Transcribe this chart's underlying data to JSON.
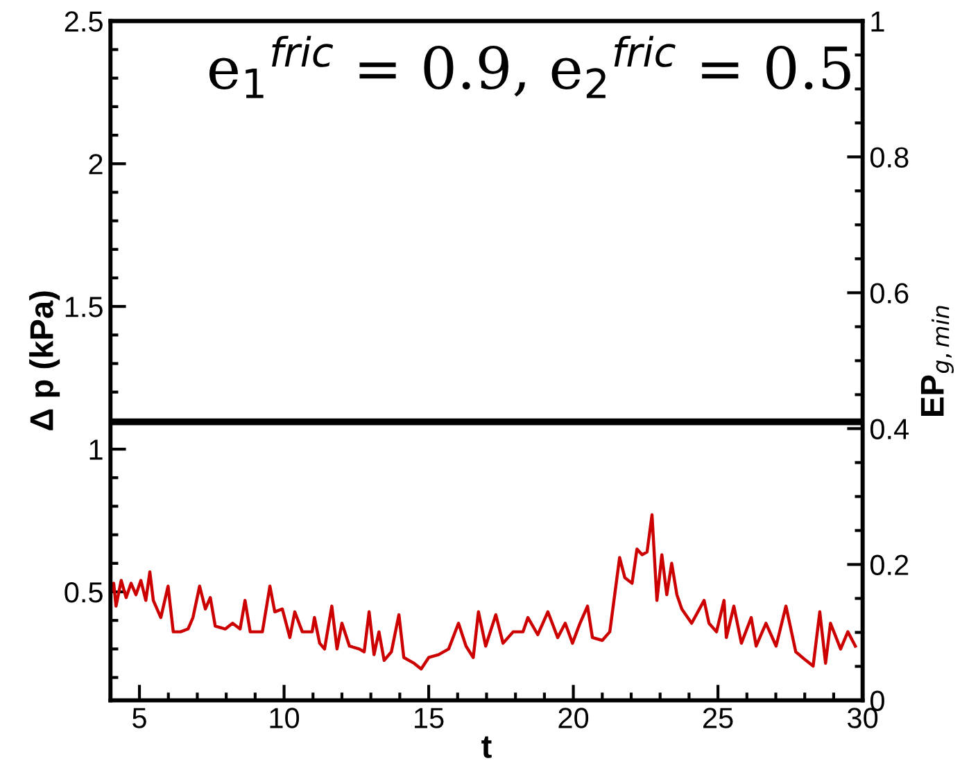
{
  "chart_data": {
    "type": "line",
    "xlabel": "t",
    "ylabel": "Δ p (kPa)",
    "y2label": "EP$_{g,min}$",
    "annotations": [
      "e$_{1}$$^{fric}$ = 0.9, e$_{2}$$^{fric}$ = 0.5"
    ],
    "xlim": [
      4,
      30
    ],
    "xticks": [
      5,
      10,
      15,
      20,
      25,
      30
    ],
    "ylim": [
      0.12,
      2.5
    ],
    "yticks": [
      0.5,
      1,
      1.5,
      2,
      2.5
    ],
    "y2lim": [
      0,
      1
    ],
    "y2ticks": [
      0,
      0.2,
      0.4,
      0.6,
      0.8,
      1
    ],
    "grid": false,
    "legend": false,
    "marker": "none",
    "line_style": "solid",
    "series": [
      {
        "color": "#cc0000",
        "x": [
          4.02,
          4.11,
          4.19,
          4.37,
          4.54,
          4.71,
          4.88,
          5.05,
          5.22,
          5.36,
          5.48,
          5.74,
          5.99,
          6.17,
          6.42,
          6.68,
          6.85,
          7.08,
          7.28,
          7.45,
          7.62,
          7.97,
          8.22,
          8.48,
          8.65,
          8.83,
          9.25,
          9.51,
          9.68,
          9.94,
          10.2,
          10.37,
          10.63,
          10.97,
          11.05,
          11.23,
          11.4,
          11.65,
          11.83,
          12.0,
          12.26,
          12.6,
          12.77,
          12.94,
          13.11,
          13.28,
          13.46,
          13.71,
          13.97,
          14.14,
          14.49,
          14.74,
          15.0,
          15.34,
          15.69,
          16.03,
          16.29,
          16.54,
          16.72,
          16.97,
          17.32,
          17.57,
          17.92,
          18.26,
          18.43,
          18.77,
          19.12,
          19.46,
          19.72,
          19.97,
          20.23,
          20.49,
          20.66,
          21.0,
          21.26,
          21.43,
          21.6,
          21.78,
          22.03,
          22.2,
          22.38,
          22.55,
          22.72,
          22.89,
          23.06,
          23.23,
          23.4,
          23.58,
          23.75,
          24.09,
          24.52,
          24.69,
          24.95,
          25.21,
          25.29,
          25.55,
          25.81,
          26.15,
          26.32,
          26.66,
          27.01,
          27.35,
          27.69,
          28.04,
          28.29,
          28.52,
          28.72,
          28.89,
          29.24,
          29.49,
          29.75
        ],
        "values": [
          0.5,
          0.53,
          0.45,
          0.54,
          0.48,
          0.53,
          0.49,
          0.54,
          0.47,
          0.57,
          0.47,
          0.41,
          0.52,
          0.36,
          0.36,
          0.37,
          0.41,
          0.52,
          0.44,
          0.48,
          0.38,
          0.37,
          0.39,
          0.37,
          0.47,
          0.36,
          0.36,
          0.52,
          0.43,
          0.44,
          0.34,
          0.43,
          0.36,
          0.36,
          0.41,
          0.32,
          0.3,
          0.45,
          0.3,
          0.39,
          0.31,
          0.3,
          0.29,
          0.43,
          0.28,
          0.36,
          0.26,
          0.29,
          0.42,
          0.27,
          0.25,
          0.23,
          0.27,
          0.28,
          0.3,
          0.39,
          0.31,
          0.27,
          0.43,
          0.31,
          0.42,
          0.32,
          0.36,
          0.36,
          0.41,
          0.35,
          0.43,
          0.34,
          0.39,
          0.32,
          0.39,
          0.45,
          0.34,
          0.33,
          0.36,
          0.49,
          0.62,
          0.55,
          0.53,
          0.65,
          0.63,
          0.64,
          0.77,
          0.47,
          0.63,
          0.49,
          0.6,
          0.49,
          0.44,
          0.39,
          0.47,
          0.39,
          0.36,
          0.47,
          0.34,
          0.45,
          0.32,
          0.41,
          0.31,
          0.39,
          0.31,
          0.45,
          0.29,
          0.26,
          0.24,
          0.43,
          0.25,
          0.39,
          0.3,
          0.36,
          0.31
        ]
      },
      {
        "color": "#000000",
        "axis": "y2",
        "x": [
          4,
          8,
          12,
          16,
          20,
          24,
          28,
          30
        ],
        "values": [
          0.41,
          0.41,
          0.41,
          0.41,
          0.41,
          0.41,
          0.41,
          0.41
        ]
      }
    ]
  }
}
